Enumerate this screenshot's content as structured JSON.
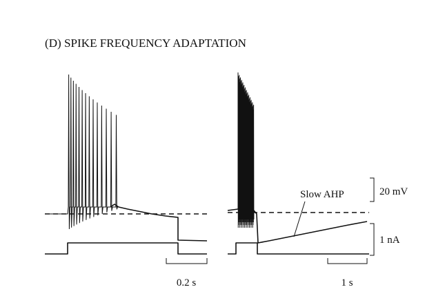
{
  "title": "(D) SPIKE FREQUENCY ADAPTATION",
  "left_panel": {
    "time_scale": "0.2 s"
  },
  "right_panel": {
    "annotation": "Slow AHP",
    "voltage_scale": "20 mV",
    "current_scale": "1 nA",
    "time_scale": "1 s"
  }
}
